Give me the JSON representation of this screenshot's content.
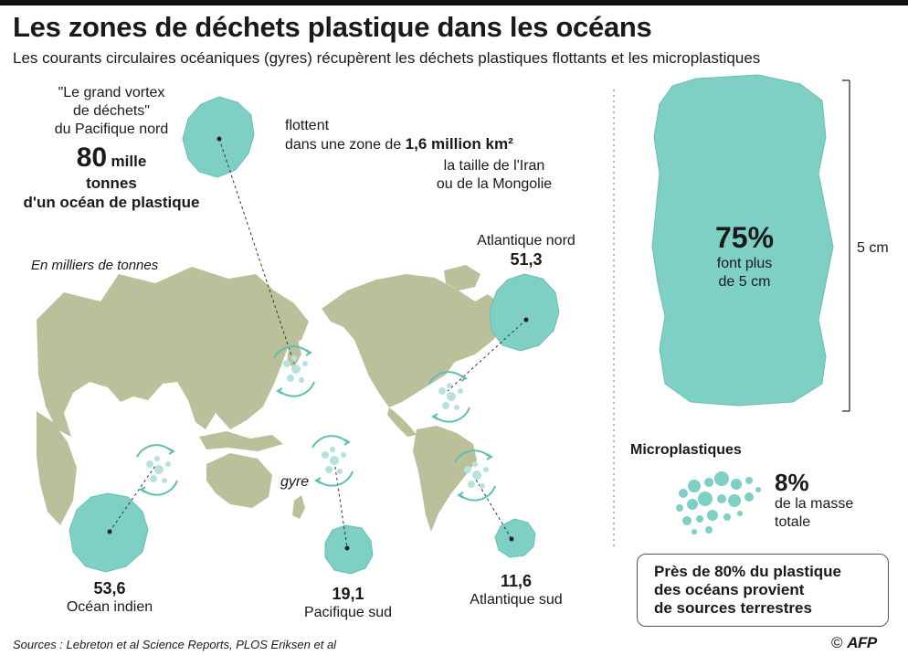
{
  "title": "Les zones de déchets plastique dans les océans",
  "subtitle": "Les courants circulaires océaniques  (gyres) récupèrent les déchets plastiques flottants et les microplastiques",
  "pacific_north": {
    "quote_line1": "\"Le grand vortex",
    "quote_line2": "de déchets\"",
    "quote_line3": "du Pacifique nord",
    "amount": "80",
    "amount_unit": "mille",
    "amount_line2": "tonnes",
    "amount_line3": "d'un océan de plastique",
    "float_line1": "flottent",
    "float_line2": "dans une zone de",
    "area": "1,6 million km²",
    "compare_line1": "la taille de l'Iran",
    "compare_line2": "ou de la Mongolie"
  },
  "units_note": "En milliers de tonnes",
  "gyre_label": "gyre",
  "regions": [
    {
      "name": "Atlantique nord",
      "value": "51,3"
    },
    {
      "name": "Océan indien",
      "value": "53,6"
    },
    {
      "name": "Pacifique sud",
      "value": "19,1"
    },
    {
      "name": "Atlantique sud",
      "value": "11,6"
    }
  ],
  "large_pieces": {
    "percent": "75%",
    "line1": "font plus",
    "line2": "de 5 cm",
    "scale_label": "5 cm"
  },
  "microplastics": {
    "title": "Microplastiques",
    "percent": "8%",
    "line1": "de la masse",
    "line2": "totale"
  },
  "note": {
    "line1": "Près de 80% du plastique",
    "line2": "des océans provient",
    "line3": "de sources terrestres"
  },
  "sources": "Sources : Lebreton et al Science Reports, PLOS Eriksen et al",
  "credit": {
    "symbol": "©",
    "agency": "AFP"
  },
  "colors": {
    "teal": "#7ecfc4",
    "land": "#bcc09a",
    "particle": "#b6e2dc",
    "arrow": "#5fbfb3",
    "text": "#1a1a1a"
  }
}
